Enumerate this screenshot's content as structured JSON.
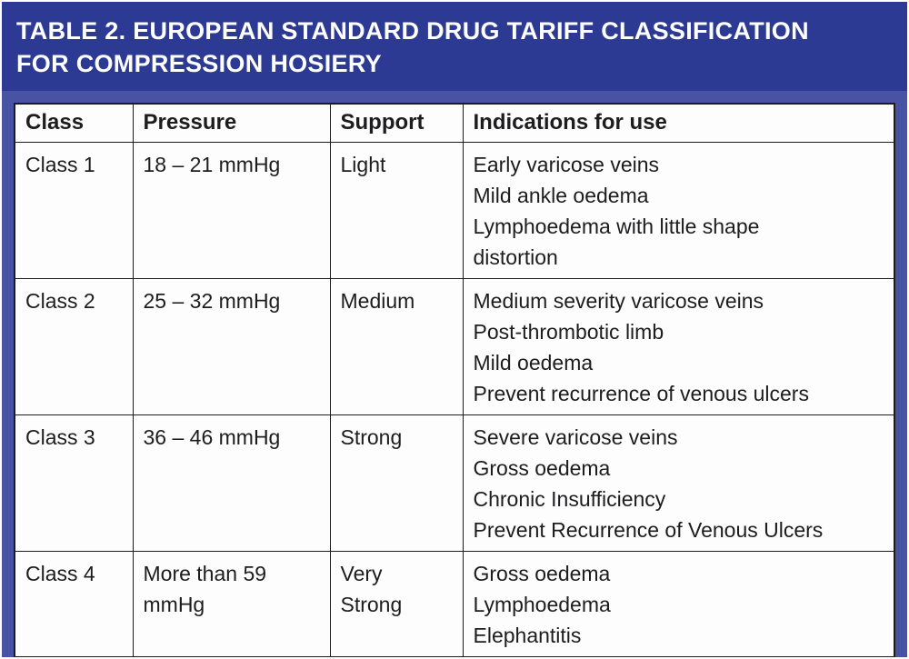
{
  "title": "TABLE 2. EUROPEAN STANDARD DRUG TARIFF CLASSIFICATION\nFOR COMPRESSION HOSIERY",
  "colors": {
    "banner_background": "#2d3a93",
    "page_background": "#4853a4",
    "table_background": "#fdfdfd",
    "border": "#1c1c1c",
    "title_text": "#ffffff",
    "body_text": "#1d1d1f"
  },
  "table": {
    "headers": [
      "Class",
      "Pressure",
      "Support",
      "Indications for use"
    ],
    "rows": [
      {
        "class": "Class 1",
        "pressure": "18 – 21 mmHg",
        "support": "Light",
        "indications": "Early varicose veins\nMild ankle oedema\nLymphoedema with little shape\ndistortion"
      },
      {
        "class": "Class 2",
        "pressure": "25 – 32 mmHg",
        "support": "Medium",
        "indications": "Medium severity varicose veins\nPost-thrombotic limb\nMild oedema\nPrevent recurrence of venous ulcers"
      },
      {
        "class": "Class 3",
        "pressure": "36 – 46 mmHg",
        "support": "Strong",
        "indications": "Severe varicose veins\nGross oedema\nChronic Insufficiency\nPrevent Recurrence of Venous Ulcers"
      },
      {
        "class": "Class 4",
        "pressure": "More than 59\nmmHg",
        "support": "Very\nStrong",
        "indications": "Gross oedema\nLymphoedema\nElephantitis"
      }
    ]
  }
}
